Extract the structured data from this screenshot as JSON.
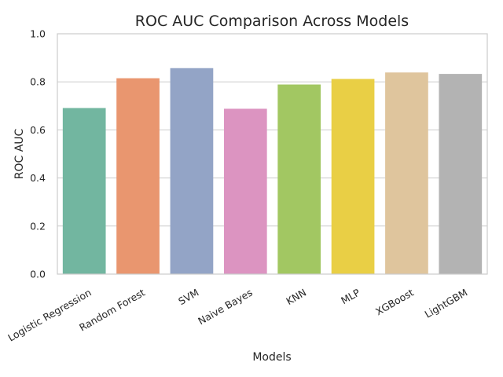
{
  "chart_data": {
    "type": "bar",
    "title": "ROC AUC Comparison Across Models",
    "xlabel": "Models",
    "ylabel": "ROC AUC",
    "categories": [
      "Logistic Regression",
      "Random Forest",
      "SVM",
      "Naive Bayes",
      "KNN",
      "MLP",
      "XGBoost",
      "LightGBM"
    ],
    "values": [
      0.691,
      0.815,
      0.857,
      0.688,
      0.789,
      0.812,
      0.839,
      0.833
    ],
    "colors": [
      "#72b6a0",
      "#e9966f",
      "#93a4c6",
      "#dc94c1",
      "#a2c762",
      "#e9cf45",
      "#dfc59d",
      "#b3b3b3"
    ],
    "ylim": [
      0,
      1
    ],
    "yticks": [
      "0.0",
      "0.2",
      "0.4",
      "0.6",
      "0.8",
      "1.0"
    ],
    "grid": "horizontal",
    "legend": "none"
  }
}
